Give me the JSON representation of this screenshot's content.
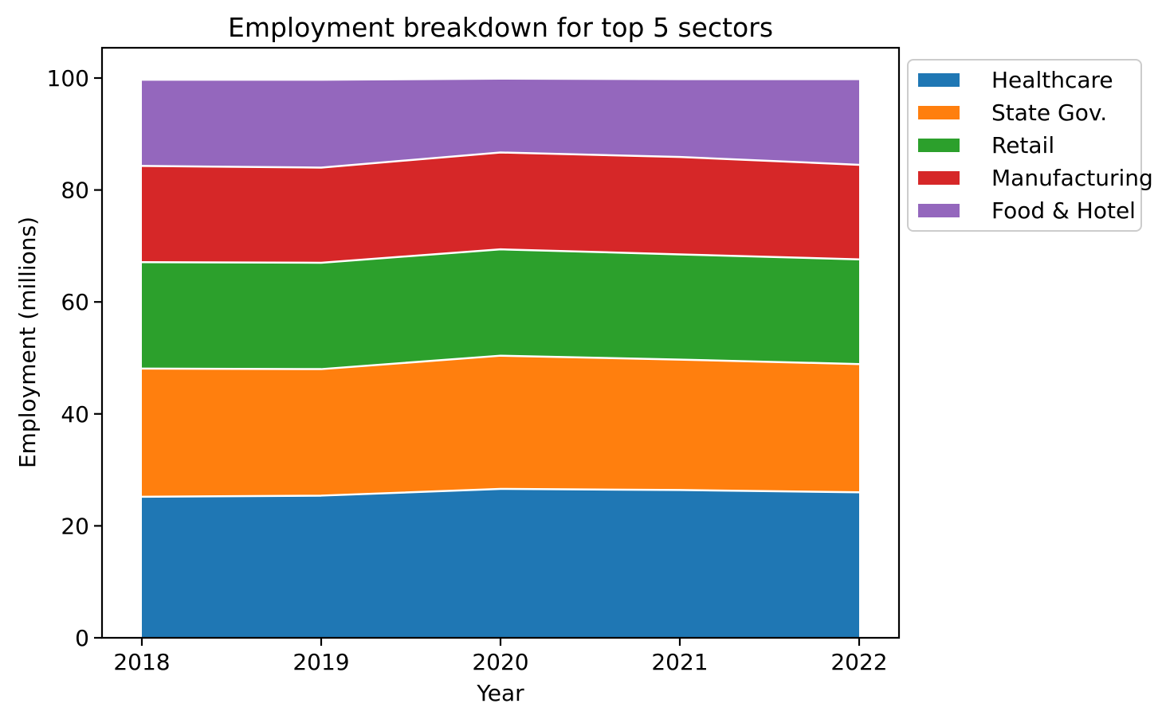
{
  "chart_data": {
    "type": "area",
    "stacked": true,
    "title": "Employment breakdown for top 5 sectors",
    "xlabel": "Year",
    "ylabel": "Employment (millions)",
    "categories": [
      "2018",
      "2019",
      "2020",
      "2021",
      "2022"
    ],
    "series": [
      {
        "name": "Healthcare",
        "color": "#1f77b4",
        "values": [
          25.2,
          25.4,
          26.6,
          26.4,
          26.0
        ]
      },
      {
        "name": "State Gov.",
        "color": "#ff7f0e",
        "values": [
          22.9,
          22.6,
          23.8,
          23.3,
          22.9
        ]
      },
      {
        "name": "Retail",
        "color": "#2ca02c",
        "values": [
          19.0,
          19.0,
          19.0,
          18.8,
          18.7
        ]
      },
      {
        "name": "Manufacturing",
        "color": "#d62728",
        "values": [
          17.2,
          17.0,
          17.3,
          17.4,
          16.9
        ]
      },
      {
        "name": "Food & Hotel",
        "color": "#9467bd",
        "values": [
          15.4,
          15.7,
          13.2,
          13.9,
          15.3
        ]
      }
    ],
    "yticks": [
      0,
      20,
      40,
      60,
      80,
      100
    ],
    "ylim": [
      0,
      105
    ],
    "grid": false,
    "legend_position": "outside upper right",
    "area_edge_color": "#ffffff",
    "axis_color": "#000000"
  }
}
